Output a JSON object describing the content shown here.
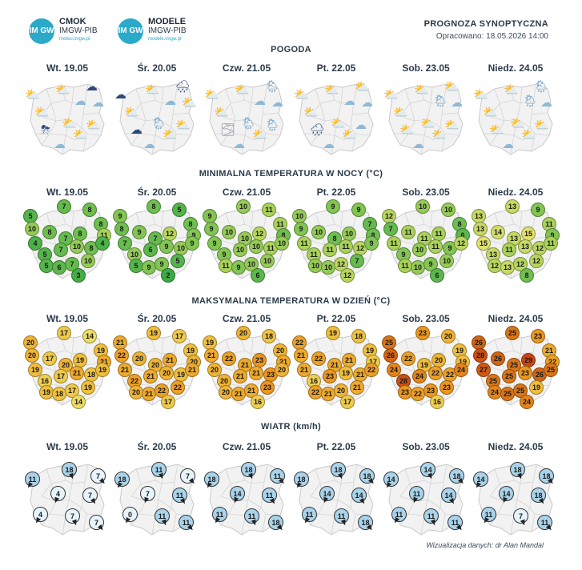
{
  "header": {
    "logo1": {
      "badge": "IM GW",
      "name": "CMOK",
      "org": "IMGW-PIB",
      "url": "meteo.imgw.pl"
    },
    "logo2": {
      "badge": "IM GW",
      "name": "MODELE",
      "org": "IMGW-PIB",
      "url": "modele.imgw.pl"
    },
    "title": "PROGNOZA SYNOPTYCZNA",
    "issued": "Opracowano: 18.05.2026 14:00"
  },
  "sections": {
    "weather": "POGODA",
    "tmin": "MINIMALNA TEMPERATURA W NOCY (°C)",
    "tmax": "MAKSYMALNA TEMPERATURA W DZIEŃ (°C)",
    "wind": "WIATR (km/h)"
  },
  "days": [
    "Wt. 19.05",
    "Śr. 20.05",
    "Czw. 21.05",
    "Pt. 22.05",
    "Sob. 23.05",
    "Niedz. 24.05"
  ],
  "weather_icons": [
    [
      "partly-cloudy",
      "partly-cloudy",
      "dark-cloud",
      "cloudy",
      "cloudy",
      "partly-cloudy",
      "thunder-rain",
      "partly-cloudy",
      "partly-cloudy",
      "partly-cloudy",
      "cloudy"
    ],
    [
      "dark-cloud",
      "partly-cloudy",
      "dark-cloud-rain",
      "cloudy",
      "partly-cloudy",
      "partly-cloudy",
      "dark-cloud",
      "rain",
      "partly-cloudy",
      "partly-cloudy",
      "cloudy"
    ],
    [
      "partly-cloudy",
      "partly-cloudy",
      "rain",
      "cloudy",
      "cloudy",
      "partly-cloudy",
      "fog",
      "rain",
      "partly-cloudy",
      "rain",
      "cloudy"
    ],
    [
      "partly-cloudy",
      "partly-cloudy",
      "partly-cloudy",
      "cloudy",
      "cloudy",
      "partly-cloudy",
      "dark-cloud-rain",
      "partly-cloudy",
      "partly-cloudy",
      "cloudy",
      "cloudy"
    ],
    [
      "partly-cloudy",
      "partly-cloudy",
      "partly-cloudy",
      "rain",
      "cloudy",
      "partly-cloudy",
      "partly-cloudy",
      "partly-cloudy",
      "partly-cloudy",
      "partly-cloudy",
      "cloudy"
    ],
    [
      "partly-cloudy",
      "partly-cloudy",
      "rain",
      "rain",
      "cloudy",
      "partly-cloudy",
      "partly-cloudy",
      "partly-cloudy",
      "partly-cloudy",
      "partly-cloudy",
      "cloudy"
    ]
  ],
  "tmin": [
    [
      5,
      7,
      8,
      8,
      11,
      10,
      4,
      8,
      7,
      8,
      5,
      7,
      10,
      8,
      4,
      5,
      6,
      7,
      10,
      3
    ],
    [
      9,
      8,
      5,
      8,
      9,
      8,
      7,
      9,
      7,
      12,
      10,
      6,
      9,
      10,
      9,
      5,
      9,
      9,
      5,
      2
    ],
    [
      9,
      10,
      11,
      11,
      8,
      9,
      9,
      10,
      10,
      12,
      9,
      10,
      10,
      11,
      10,
      11,
      9,
      10,
      10,
      6
    ],
    [
      10,
      9,
      9,
      7,
      8,
      9,
      11,
      10,
      8,
      10,
      11,
      11,
      11,
      12,
      9,
      10,
      10,
      12,
      7,
      12
    ],
    [
      12,
      10,
      10,
      8,
      6,
      7,
      11,
      11,
      11,
      11,
      9,
      10,
      11,
      9,
      12,
      11,
      10,
      9,
      10,
      6
    ],
    [
      13,
      13,
      9,
      11,
      9,
      13,
      15,
      14,
      13,
      15,
      13,
      11,
      13,
      12,
      11,
      12,
      13,
      12,
      12,
      8
    ]
  ],
  "tmax": [
    [
      20,
      17,
      14,
      19,
      21,
      20,
      19,
      17,
      20,
      19,
      16,
      17,
      21,
      18,
      19,
      19,
      18,
      17,
      19,
      14
    ],
    [
      21,
      19,
      17,
      19,
      20,
      22,
      21,
      20,
      20,
      21,
      22,
      21,
      20,
      19,
      21,
      20,
      21,
      22,
      22,
      17
    ],
    [
      19,
      20,
      18,
      20,
      21,
      21,
      20,
      22,
      21,
      23,
      20,
      21,
      21,
      23,
      20,
      20,
      21,
      21,
      23,
      16
    ],
    [
      22,
      19,
      18,
      19,
      17,
      21,
      21,
      22,
      21,
      21,
      16,
      23,
      19,
      21,
      22,
      22,
      21,
      20,
      21,
      17
    ],
    [
      25,
      23,
      20,
      19,
      19,
      26,
      24,
      22,
      19,
      20,
      28,
      24,
      22,
      22,
      24,
      23,
      22,
      23,
      23,
      16
    ],
    [
      26,
      25,
      23,
      21,
      22,
      28,
      27,
      26,
      25,
      29,
      25,
      25,
      23,
      26,
      25,
      24,
      25,
      25,
      19,
      24
    ]
  ],
  "wind": [
    [
      11,
      18,
      7,
      4,
      7,
      4,
      7,
      7
    ],
    [
      18,
      11,
      7,
      7,
      11,
      0,
      11,
      11
    ],
    [
      18,
      18,
      11,
      14,
      11,
      11,
      11,
      18
    ],
    [
      18,
      18,
      18,
      14,
      14,
      11,
      11,
      18
    ],
    [
      14,
      14,
      18,
      11,
      14,
      11,
      11,
      11
    ],
    [
      14,
      18,
      18,
      14,
      18,
      11,
      7,
      11
    ]
  ],
  "credit": "Wizualizacja danych: dr Alan Mandal",
  "colors": {
    "cool": "#7ec84f",
    "warm": "#f0a31b",
    "wind": "#a9d3ea"
  }
}
